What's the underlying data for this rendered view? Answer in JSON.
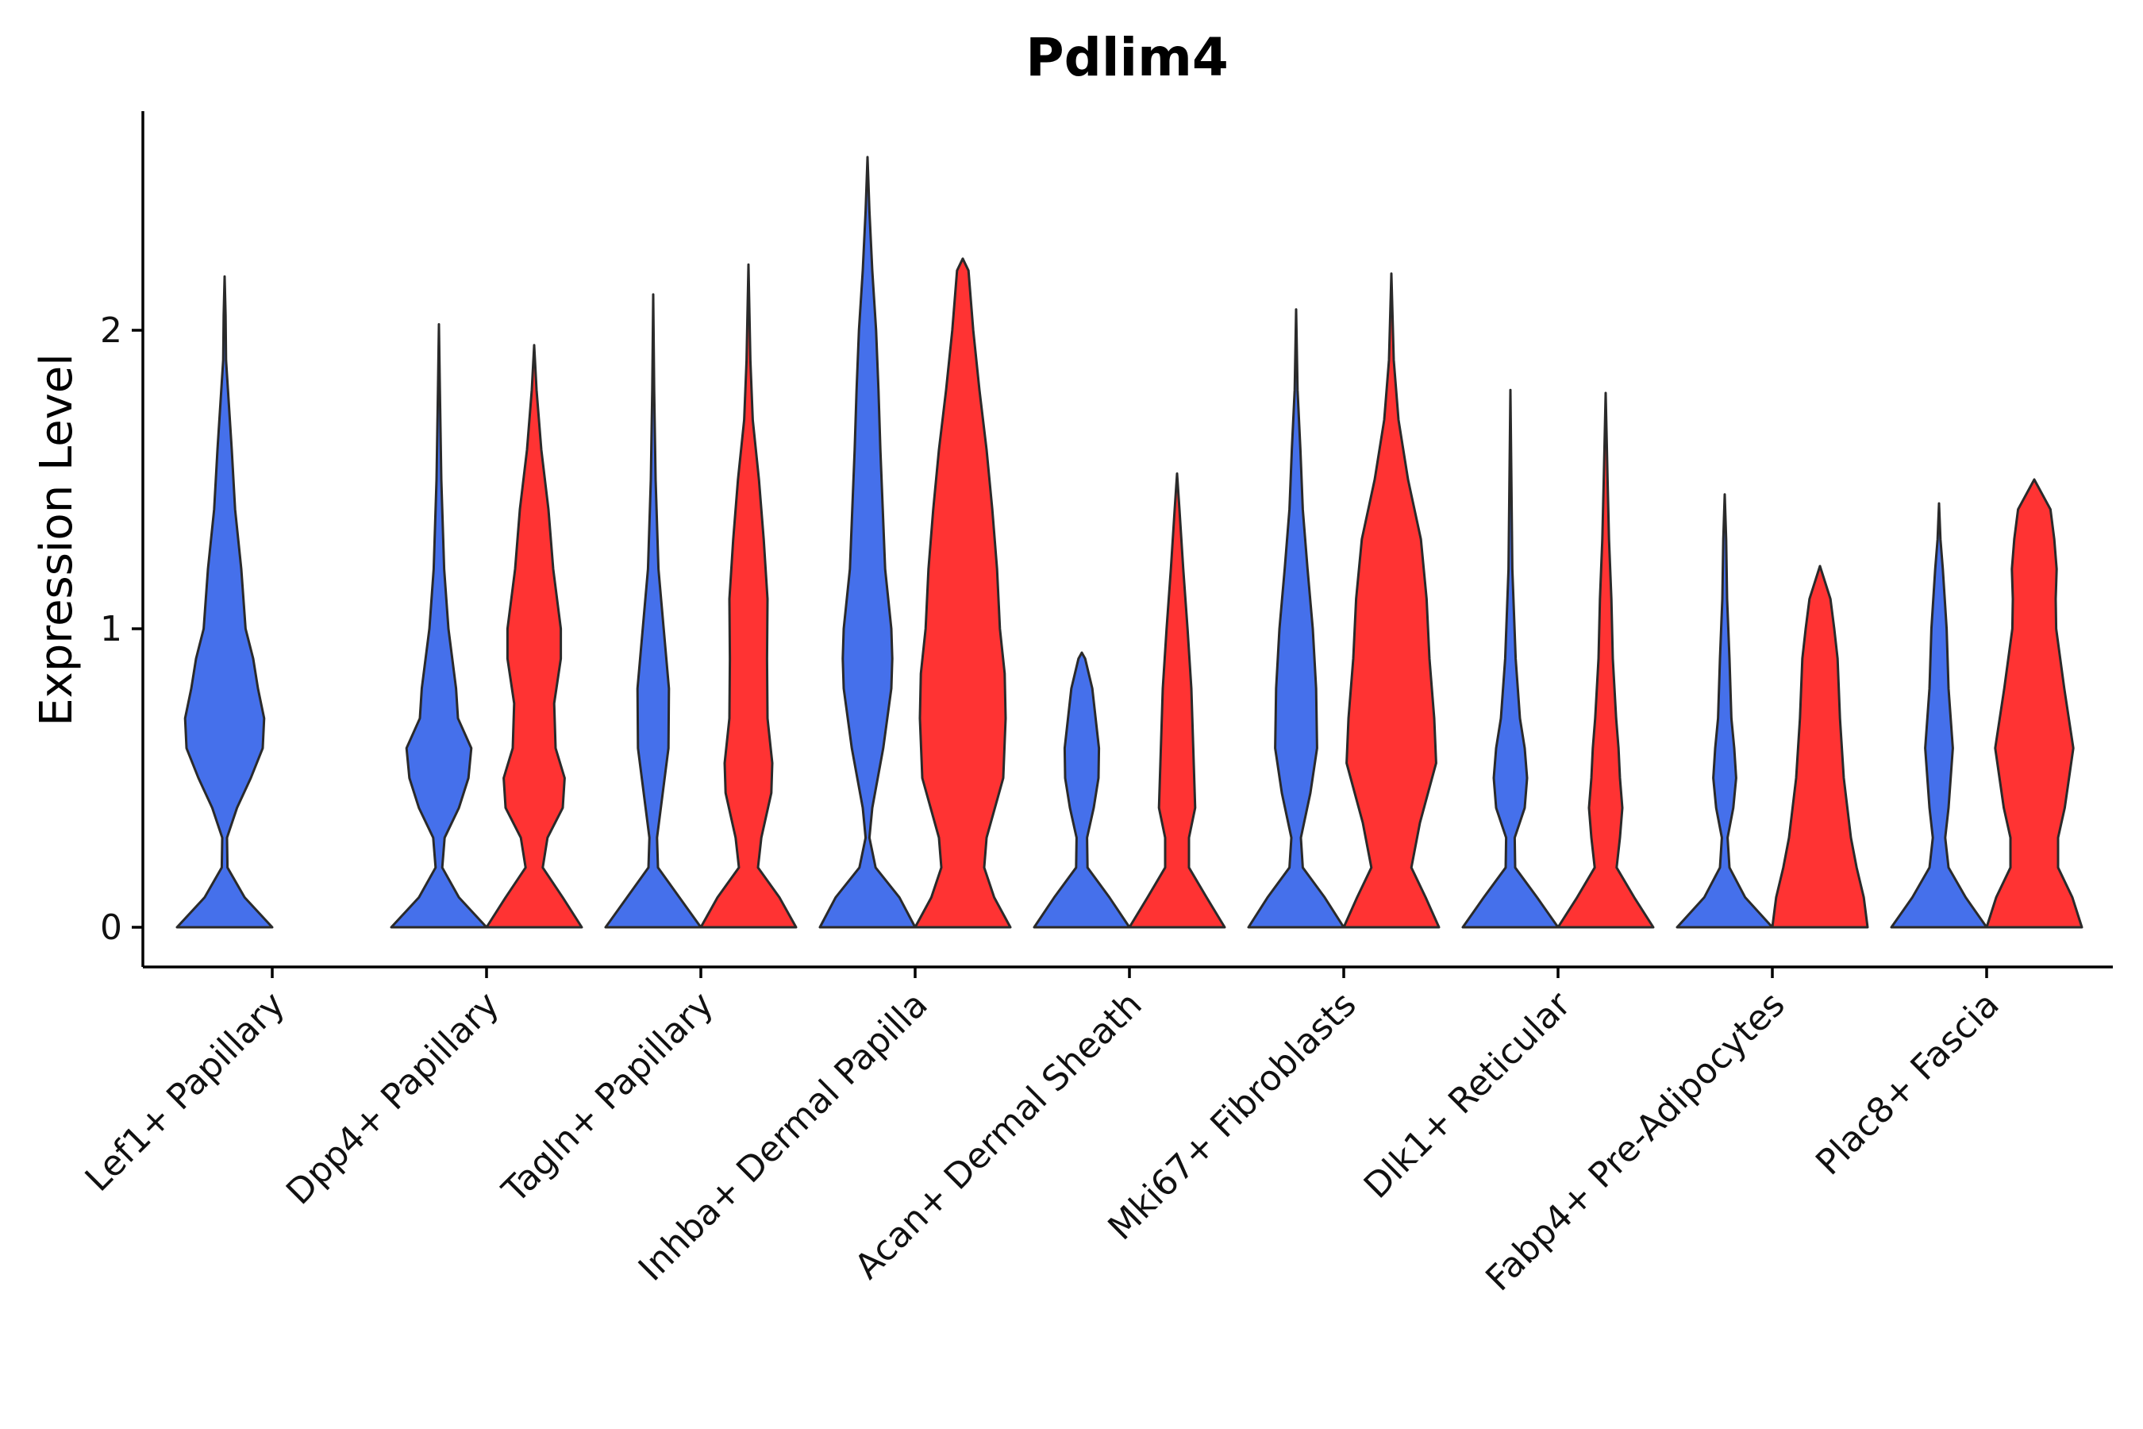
{
  "chart_data": {
    "type": "violin",
    "title": "Pdlim4",
    "xlabel": "",
    "ylabel": "Expression Level",
    "ylim": [
      -0.13,
      2.72
    ],
    "yticks": [
      0,
      1,
      2
    ],
    "grid": false,
    "legend": "none",
    "categories": [
      "Lef1+ Papillary",
      "Dpp4+ Papillary",
      "Tagln+ Papillary",
      "Inhba+ Dermal Papilla",
      "Acan+ Dermal Sheath",
      "Mki67+ Fibroblasts",
      "Dlk1+ Reticular",
      "Fabp4+ Pre-Adipocytes",
      "Plac8+ Fascia"
    ],
    "series": [
      {
        "name": "group-blue",
        "color": "#4570EB",
        "violins": [
          {
            "category": "Lef1+ Papillary",
            "max": 2.18,
            "profile": [
              [
                0,
                1.0
              ],
              [
                0.1,
                0.42
              ],
              [
                0.2,
                0.06
              ],
              [
                0.3,
                0.05
              ],
              [
                0.4,
                0.26
              ],
              [
                0.5,
                0.55
              ],
              [
                0.6,
                0.8
              ],
              [
                0.7,
                0.83
              ],
              [
                0.8,
                0.7
              ],
              [
                0.9,
                0.6
              ],
              [
                1.0,
                0.44
              ],
              [
                1.2,
                0.35
              ],
              [
                1.4,
                0.22
              ],
              [
                1.6,
                0.15
              ],
              [
                1.8,
                0.07
              ],
              [
                1.9,
                0.03
              ],
              [
                2.05,
                0.02
              ],
              [
                2.18,
                0.0
              ]
            ]
          },
          {
            "category": "Dpp4+ Papillary",
            "max": 2.02,
            "profile": [
              [
                0,
                1.0
              ],
              [
                0.1,
                0.42
              ],
              [
                0.2,
                0.07
              ],
              [
                0.3,
                0.12
              ],
              [
                0.4,
                0.42
              ],
              [
                0.5,
                0.62
              ],
              [
                0.6,
                0.68
              ],
              [
                0.7,
                0.4
              ],
              [
                0.8,
                0.36
              ],
              [
                1.0,
                0.2
              ],
              [
                1.2,
                0.11
              ],
              [
                1.5,
                0.05
              ],
              [
                1.8,
                0.02
              ],
              [
                2.02,
                0.0
              ]
            ]
          },
          {
            "category": "Tagln+ Papillary",
            "max": 2.12,
            "profile": [
              [
                0,
                1.0
              ],
              [
                0.1,
                0.55
              ],
              [
                0.2,
                0.1
              ],
              [
                0.3,
                0.08
              ],
              [
                0.4,
                0.16
              ],
              [
                0.6,
                0.32
              ],
              [
                0.8,
                0.33
              ],
              [
                1.0,
                0.22
              ],
              [
                1.2,
                0.11
              ],
              [
                1.5,
                0.05
              ],
              [
                1.8,
                0.02
              ],
              [
                2.12,
                0.0
              ]
            ]
          },
          {
            "category": "Inhba+ Dermal Papilla",
            "max": 2.58,
            "profile": [
              [
                0,
                1.0
              ],
              [
                0.1,
                0.67
              ],
              [
                0.2,
                0.17
              ],
              [
                0.3,
                0.04
              ],
              [
                0.4,
                0.1
              ],
              [
                0.6,
                0.33
              ],
              [
                0.8,
                0.5
              ],
              [
                0.9,
                0.52
              ],
              [
                1.0,
                0.5
              ],
              [
                1.2,
                0.37
              ],
              [
                1.4,
                0.32
              ],
              [
                1.6,
                0.27
              ],
              [
                1.8,
                0.23
              ],
              [
                2.0,
                0.18
              ],
              [
                2.2,
                0.1
              ],
              [
                2.4,
                0.04
              ],
              [
                2.58,
                0.0
              ]
            ]
          },
          {
            "category": "Acan+ Dermal Sheath",
            "max": 0.92,
            "profile": [
              [
                0,
                1.0
              ],
              [
                0.1,
                0.58
              ],
              [
                0.2,
                0.12
              ],
              [
                0.3,
                0.11
              ],
              [
                0.4,
                0.25
              ],
              [
                0.5,
                0.35
              ],
              [
                0.6,
                0.36
              ],
              [
                0.7,
                0.29
              ],
              [
                0.8,
                0.22
              ],
              [
                0.9,
                0.07
              ],
              [
                0.92,
                0.0
              ]
            ]
          },
          {
            "category": "Mki67+ Fibroblasts",
            "max": 2.07,
            "profile": [
              [
                0,
                1.0
              ],
              [
                0.1,
                0.6
              ],
              [
                0.2,
                0.14
              ],
              [
                0.3,
                0.1
              ],
              [
                0.45,
                0.3
              ],
              [
                0.6,
                0.44
              ],
              [
                0.8,
                0.42
              ],
              [
                1.0,
                0.35
              ],
              [
                1.2,
                0.24
              ],
              [
                1.4,
                0.14
              ],
              [
                1.6,
                0.09
              ],
              [
                1.8,
                0.03
              ],
              [
                2.07,
                0.0
              ]
            ]
          },
          {
            "category": "Dlk1+ Reticular",
            "max": 1.8,
            "profile": [
              [
                0,
                1.0
              ],
              [
                0.1,
                0.56
              ],
              [
                0.2,
                0.1
              ],
              [
                0.3,
                0.09
              ],
              [
                0.4,
                0.3
              ],
              [
                0.5,
                0.35
              ],
              [
                0.6,
                0.3
              ],
              [
                0.7,
                0.2
              ],
              [
                0.9,
                0.11
              ],
              [
                1.2,
                0.04
              ],
              [
                1.5,
                0.02
              ],
              [
                1.8,
                0.0
              ]
            ]
          },
          {
            "category": "Fabp4+ Pre-Adipocytes",
            "max": 1.45,
            "profile": [
              [
                0,
                1.0
              ],
              [
                0.1,
                0.43
              ],
              [
                0.2,
                0.1
              ],
              [
                0.3,
                0.06
              ],
              [
                0.4,
                0.18
              ],
              [
                0.5,
                0.24
              ],
              [
                0.6,
                0.2
              ],
              [
                0.7,
                0.14
              ],
              [
                0.9,
                0.1
              ],
              [
                1.1,
                0.05
              ],
              [
                1.3,
                0.03
              ],
              [
                1.45,
                0.0
              ]
            ]
          },
          {
            "category": "Plac8+ Fascia",
            "max": 1.42,
            "profile": [
              [
                0,
                1.0
              ],
              [
                0.1,
                0.56
              ],
              [
                0.2,
                0.2
              ],
              [
                0.3,
                0.13
              ],
              [
                0.4,
                0.2
              ],
              [
                0.6,
                0.29
              ],
              [
                0.8,
                0.2
              ],
              [
                1.0,
                0.16
              ],
              [
                1.2,
                0.08
              ],
              [
                1.3,
                0.03
              ],
              [
                1.42,
                0.0
              ]
            ]
          }
        ]
      },
      {
        "name": "group-red",
        "color": "#FF3333",
        "violins": [
          {
            "category": "Dpp4+ Papillary",
            "max": 1.95,
            "profile": [
              [
                0,
                1.0
              ],
              [
                0.1,
                0.6
              ],
              [
                0.2,
                0.18
              ],
              [
                0.3,
                0.28
              ],
              [
                0.4,
                0.6
              ],
              [
                0.5,
                0.64
              ],
              [
                0.6,
                0.45
              ],
              [
                0.75,
                0.42
              ],
              [
                0.9,
                0.56
              ],
              [
                1.0,
                0.56
              ],
              [
                1.2,
                0.4
              ],
              [
                1.4,
                0.3
              ],
              [
                1.6,
                0.15
              ],
              [
                1.8,
                0.05
              ],
              [
                1.95,
                0.0
              ]
            ]
          },
          {
            "category": "Tagln+ Papillary",
            "max": 2.22,
            "profile": [
              [
                0,
                1.0
              ],
              [
                0.1,
                0.65
              ],
              [
                0.2,
                0.2
              ],
              [
                0.3,
                0.27
              ],
              [
                0.45,
                0.48
              ],
              [
                0.55,
                0.5
              ],
              [
                0.7,
                0.4
              ],
              [
                0.9,
                0.39
              ],
              [
                1.1,
                0.4
              ],
              [
                1.3,
                0.32
              ],
              [
                1.5,
                0.22
              ],
              [
                1.7,
                0.09
              ],
              [
                1.9,
                0.04
              ],
              [
                2.22,
                0.0
              ]
            ]
          },
          {
            "category": "Inhba+ Dermal Papilla",
            "max": 2.24,
            "profile": [
              [
                0,
                1.0
              ],
              [
                0.1,
                0.66
              ],
              [
                0.2,
                0.45
              ],
              [
                0.3,
                0.5
              ],
              [
                0.5,
                0.85
              ],
              [
                0.7,
                0.9
              ],
              [
                0.85,
                0.88
              ],
              [
                1.0,
                0.78
              ],
              [
                1.2,
                0.72
              ],
              [
                1.4,
                0.62
              ],
              [
                1.6,
                0.5
              ],
              [
                1.8,
                0.35
              ],
              [
                2.0,
                0.22
              ],
              [
                2.2,
                0.12
              ],
              [
                2.24,
                0.0
              ]
            ]
          },
          {
            "category": "Acan+ Dermal Sheath",
            "max": 1.52,
            "profile": [
              [
                0,
                1.0
              ],
              [
                0.1,
                0.62
              ],
              [
                0.2,
                0.25
              ],
              [
                0.3,
                0.25
              ],
              [
                0.4,
                0.38
              ],
              [
                0.6,
                0.34
              ],
              [
                0.8,
                0.3
              ],
              [
                1.0,
                0.22
              ],
              [
                1.2,
                0.13
              ],
              [
                1.4,
                0.05
              ],
              [
                1.52,
                0.0
              ]
            ]
          },
          {
            "category": "Mki67+ Fibroblasts",
            "max": 2.19,
            "profile": [
              [
                0,
                1.0
              ],
              [
                0.1,
                0.72
              ],
              [
                0.2,
                0.42
              ],
              [
                0.35,
                0.6
              ],
              [
                0.55,
                0.94
              ],
              [
                0.7,
                0.9
              ],
              [
                0.9,
                0.8
              ],
              [
                1.1,
                0.74
              ],
              [
                1.3,
                0.62
              ],
              [
                1.5,
                0.35
              ],
              [
                1.7,
                0.15
              ],
              [
                1.9,
                0.05
              ],
              [
                2.19,
                0.0
              ]
            ]
          },
          {
            "category": "Dlk1+ Reticular",
            "max": 1.79,
            "profile": [
              [
                0,
                1.0
              ],
              [
                0.1,
                0.6
              ],
              [
                0.2,
                0.23
              ],
              [
                0.3,
                0.3
              ],
              [
                0.4,
                0.35
              ],
              [
                0.5,
                0.3
              ],
              [
                0.6,
                0.27
              ],
              [
                0.7,
                0.22
              ],
              [
                0.9,
                0.15
              ],
              [
                1.1,
                0.12
              ],
              [
                1.3,
                0.07
              ],
              [
                1.5,
                0.04
              ],
              [
                1.79,
                0.0
              ]
            ]
          },
          {
            "category": "Fabp4+ Pre-Adipocytes",
            "max": 1.21,
            "profile": [
              [
                0,
                1.0
              ],
              [
                0.1,
                0.92
              ],
              [
                0.2,
                0.77
              ],
              [
                0.3,
                0.65
              ],
              [
                0.5,
                0.5
              ],
              [
                0.7,
                0.42
              ],
              [
                0.9,
                0.37
              ],
              [
                1.0,
                0.3
              ],
              [
                1.1,
                0.22
              ],
              [
                1.21,
                0.0
              ]
            ]
          },
          {
            "category": "Plac8+ Fascia",
            "max": 1.5,
            "profile": [
              [
                0,
                1.0
              ],
              [
                0.1,
                0.8
              ],
              [
                0.2,
                0.5
              ],
              [
                0.3,
                0.5
              ],
              [
                0.4,
                0.64
              ],
              [
                0.6,
                0.82
              ],
              [
                0.8,
                0.63
              ],
              [
                1.0,
                0.46
              ],
              [
                1.1,
                0.45
              ],
              [
                1.2,
                0.47
              ],
              [
                1.3,
                0.42
              ],
              [
                1.4,
                0.34
              ],
              [
                1.5,
                0.0
              ]
            ]
          }
        ]
      }
    ]
  }
}
